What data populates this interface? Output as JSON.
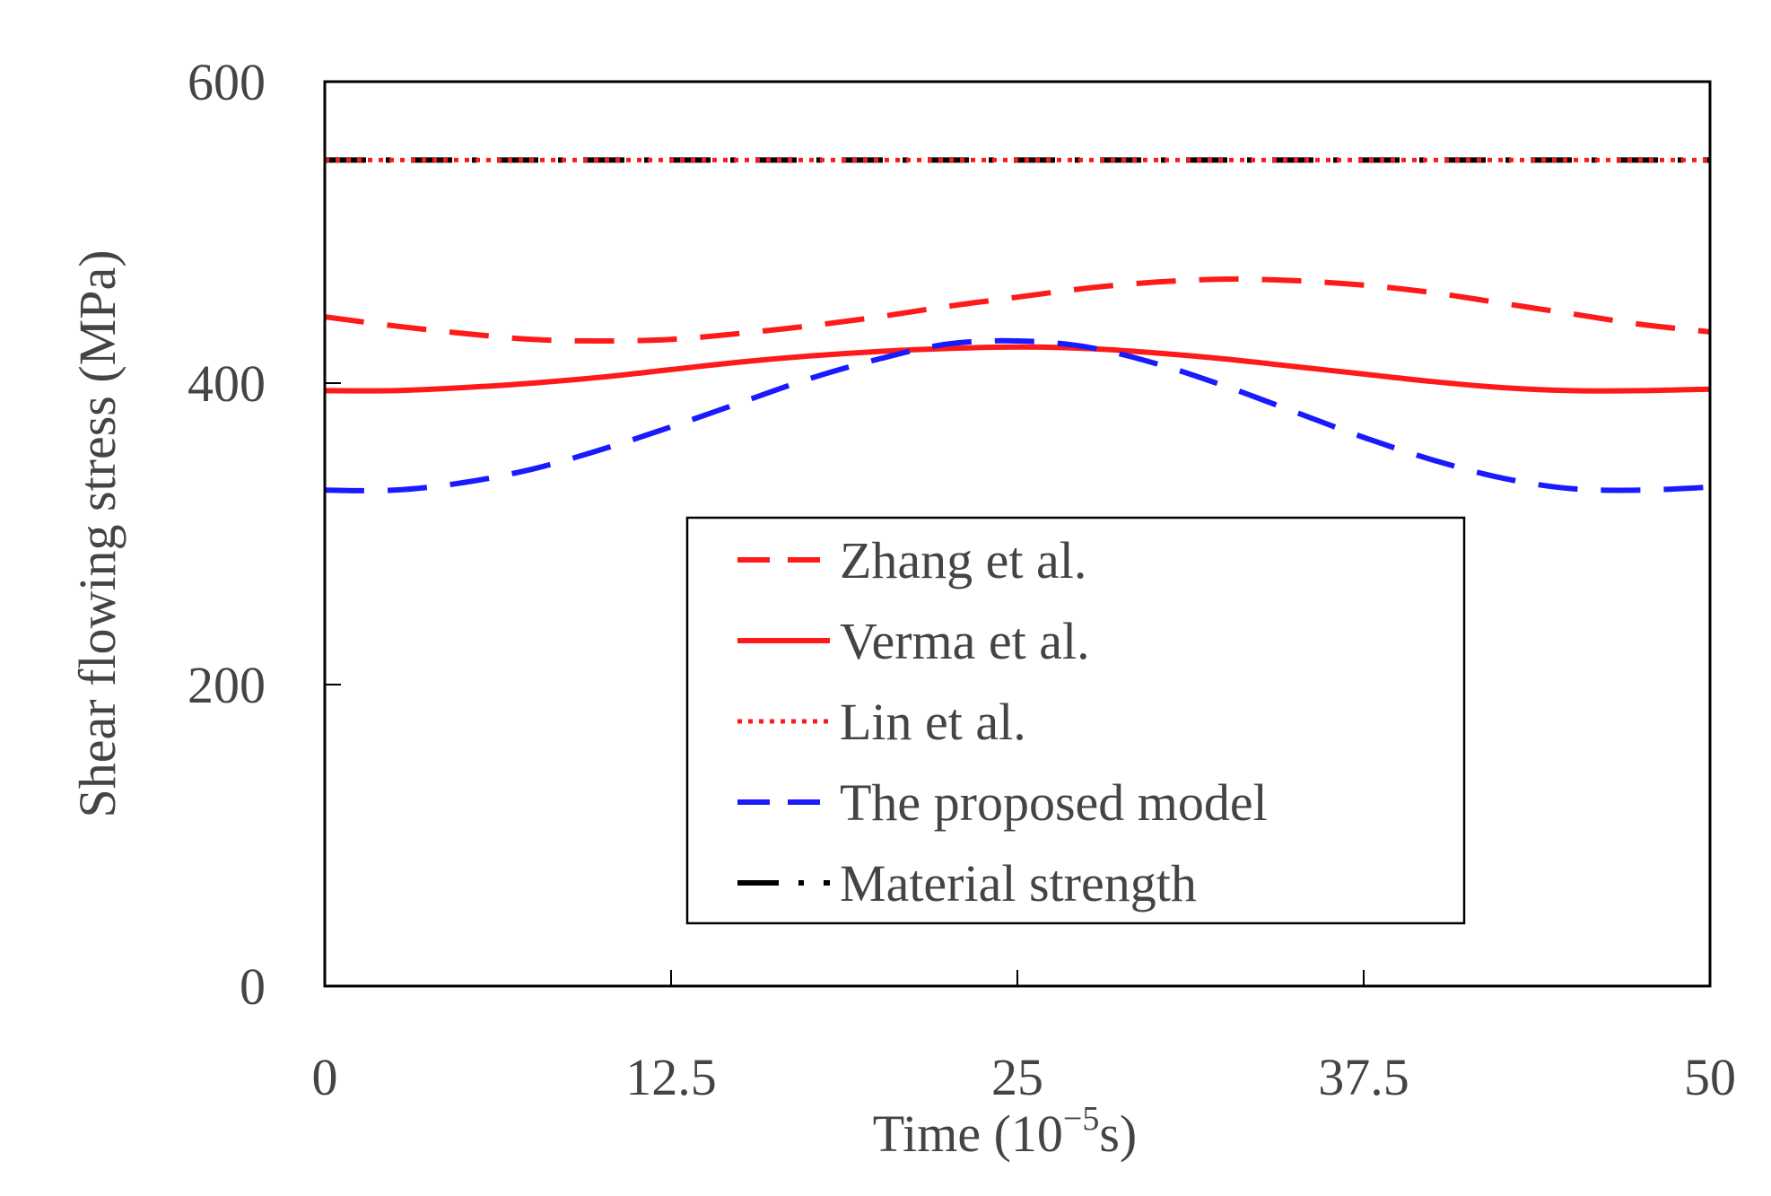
{
  "chart_data": {
    "type": "line",
    "title": "",
    "xlabel": "Time (10",
    "xlabel_exponent": "−5",
    "xlabel_unit": "s)",
    "ylabel": "Shear flowing stress (MPa)",
    "xlim": [
      0,
      50
    ],
    "ylim": [
      0,
      600
    ],
    "x_ticks": [
      0,
      12.5,
      25,
      37.5,
      50
    ],
    "x_tick_labels": [
      "0",
      "12.5",
      "25",
      "37.5",
      "50"
    ],
    "y_ticks": [
      0,
      200,
      400,
      600
    ],
    "y_tick_labels": [
      "0",
      "200",
      "400",
      "600"
    ],
    "grid": false,
    "legend_position": "center-bottom",
    "series": [
      {
        "name": "Zhang et al.",
        "color": "#ff1a1a",
        "style": "dashed",
        "x": [
          0,
          2.5,
          5,
          7.5,
          10,
          12.5,
          15,
          17.5,
          20,
          22.5,
          25,
          27.5,
          30,
          32.5,
          35,
          37.5,
          40,
          42.5,
          45,
          47.5,
          50
        ],
        "y": [
          444,
          438,
          433,
          429,
          428,
          429,
          433,
          438,
          444,
          451,
          457,
          463,
          467,
          469,
          468,
          465,
          460,
          453,
          446,
          439,
          434
        ]
      },
      {
        "name": "Verma et al.",
        "color": "#ff1a1a",
        "style": "solid",
        "x": [
          0,
          2.5,
          5,
          7.5,
          10,
          12.5,
          15,
          17.5,
          20,
          22.5,
          25,
          27.5,
          30,
          32.5,
          35,
          37.5,
          40,
          42.5,
          45,
          47.5,
          50
        ],
        "y": [
          395,
          395,
          397,
          400,
          404,
          409,
          414,
          418,
          421,
          423,
          424,
          423,
          420,
          416,
          411,
          406,
          401,
          397,
          395,
          395,
          396
        ]
      },
      {
        "name": "Lin et al.",
        "color": "#ff1a1a",
        "style": "dotted",
        "x": [
          0,
          50
        ],
        "y": [
          548,
          548
        ]
      },
      {
        "name": "The proposed model",
        "color": "#1a1aff",
        "style": "dashed",
        "x": [
          0,
          2.5,
          5,
          7.5,
          10,
          12.5,
          15,
          17.5,
          20,
          22.5,
          25,
          27.5,
          30,
          32.5,
          35,
          37.5,
          40,
          42.5,
          45,
          47.5,
          50
        ],
        "y": [
          329,
          329,
          334,
          343,
          356,
          371,
          387,
          403,
          416,
          426,
          428,
          424,
          413,
          398,
          381,
          364,
          349,
          337,
          330,
          329,
          331
        ]
      },
      {
        "name": "Material strength",
        "color": "#000000",
        "style": "dash-dot",
        "x": [
          0,
          50
        ],
        "y": [
          548,
          548
        ]
      }
    ]
  }
}
